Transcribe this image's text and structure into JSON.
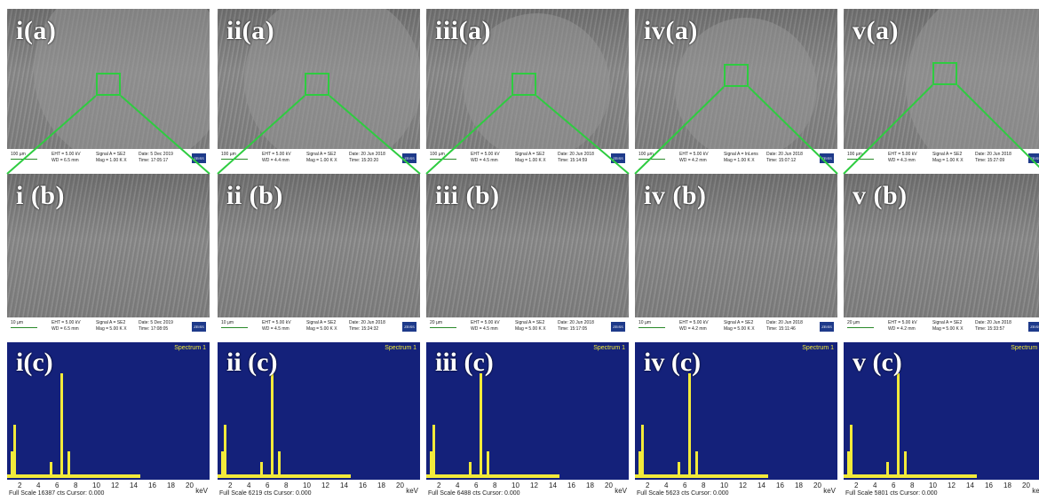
{
  "panels": [
    {
      "label_a": "i(a)",
      "label_b": "i (b)",
      "label_c": "i(c)",
      "sem_a": {
        "scale": "100 µm",
        "eht": "EHT = 5.00 kV",
        "wd": "WD = 6.5 mm",
        "signal": "Signal A = SE2",
        "mag": "Mag = 1.00 K X",
        "date": "Date: 5 Dec 2019",
        "time": "Time: 17:05:17"
      },
      "sem_b": {
        "scale": "10 µm",
        "eht": "EHT = 5.00 kV",
        "wd": "WD = 6.5 mm",
        "signal": "Signal A = SE2",
        "mag": "Mag = 5.00 K X",
        "date": "Date: 5 Dec 2019",
        "time": "Time: 17:08:05"
      },
      "full_scale": "Full Scale 16387 cts Cursor: 0.000"
    },
    {
      "label_a": "ii(a)",
      "label_b": "ii (b)",
      "label_c": "ii (c)",
      "sem_a": {
        "scale": "100 µm",
        "eht": "EHT = 5.00 kV",
        "wd": "WD = 4.4 mm",
        "signal": "Signal A = SE2",
        "mag": "Mag = 1.00 K X",
        "date": "Date: 20 Jun 2018",
        "time": "Time: 15:20:20"
      },
      "sem_b": {
        "scale": "10 µm",
        "eht": "EHT = 5.00 kV",
        "wd": "WD = 4.5 mm",
        "signal": "Signal A = SE2",
        "mag": "Mag = 5.00 K X",
        "date": "Date: 20 Jun 2018",
        "time": "Time: 15:24:32"
      },
      "full_scale": "Full Scale 6219 cts Cursor: 0.000"
    },
    {
      "label_a": "iii(a)",
      "label_b": "iii (b)",
      "label_c": "iii (c)",
      "sem_a": {
        "scale": "100 µm",
        "eht": "EHT = 5.00 kV",
        "wd": "WD = 4.5 mm",
        "signal": "Signal A = SE2",
        "mag": "Mag = 1.00 K X",
        "date": "Date: 20 Jun 2018",
        "time": "Time: 15:14:59"
      },
      "sem_b": {
        "scale": "20 µm",
        "eht": "EHT = 5.00 kV",
        "wd": "WD = 4.5 mm",
        "signal": "Signal A = SE2",
        "mag": "Mag = 5.00 K X",
        "date": "Date: 20 Jun 2018",
        "time": "Time: 15:17:05"
      },
      "full_scale": "Full Scale 6488 cts Cursor: 0.000"
    },
    {
      "label_a": "iv(a)",
      "label_b": "iv (b)",
      "label_c": "iv (c)",
      "sem_a": {
        "scale": "100 µm",
        "eht": "EHT = 5.00 kV",
        "wd": "WD = 4.2 mm",
        "signal": "Signal A = InLens",
        "mag": "Mag = 1.00 K X",
        "date": "Date: 20 Jun 2018",
        "time": "Time: 15:07:12"
      },
      "sem_b": {
        "scale": "10 µm",
        "eht": "EHT = 5.00 kV",
        "wd": "WD = 4.2 mm",
        "signal": "Signal A = SE2",
        "mag": "Mag = 5.00 K X",
        "date": "Date: 20 Jun 2018",
        "time": "Time: 15:11:46"
      },
      "full_scale": "Full Scale 5623 cts Cursor: 0.000"
    },
    {
      "label_a": "v(a)",
      "label_b": "v (b)",
      "label_c": "v (c)",
      "sem_a": {
        "scale": "100 µm",
        "eht": "EHT = 5.00 kV",
        "wd": "WD = 4.3 mm",
        "signal": "Signal A = SE2",
        "mag": "Mag = 1.00 K X",
        "date": "Date: 20 Jun 2018",
        "time": "Time: 15:27:09"
      },
      "sem_b": {
        "scale": "20 µm",
        "eht": "EHT = 5.00 kV",
        "wd": "WD = 4.2 mm",
        "signal": "Signal A = SE2",
        "mag": "Mag = 5.00 K X",
        "date": "Date: 20 Jun 2018",
        "time": "Time: 15:33:57"
      },
      "full_scale": "Full Scale 5801 cts Cursor: 0.000"
    }
  ],
  "spectrum_title": "Spectrum 1",
  "axis_ticks": [
    "2",
    "4",
    "6",
    "8",
    "10",
    "12",
    "14",
    "16",
    "18",
    "20"
  ],
  "axis_unit": "keV",
  "logo_text": "ZEISS",
  "colors": {
    "spectrum_bg": "#14217a",
    "peak": "#f2ea3a",
    "zoom_box": "#2ecc40",
    "label": "#ffffff"
  }
}
